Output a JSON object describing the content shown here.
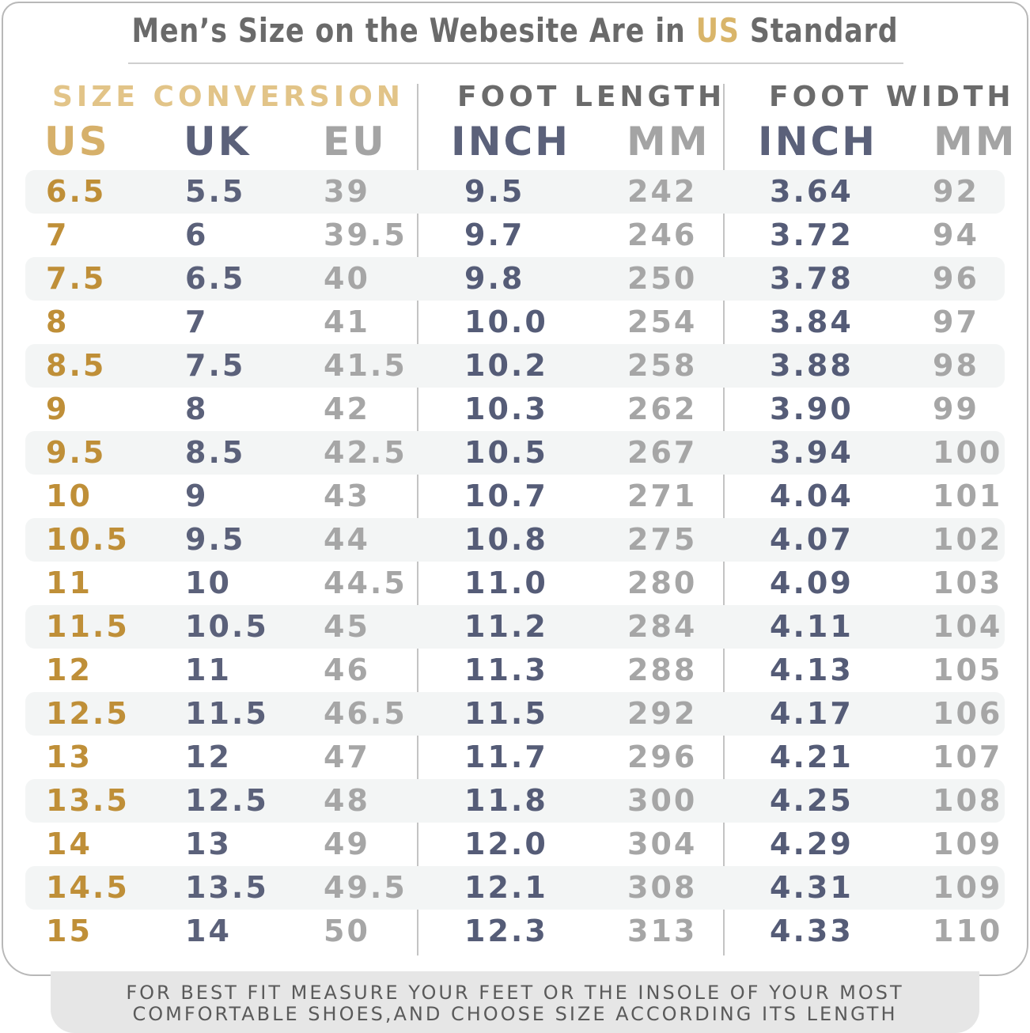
{
  "title": {
    "prefix": "Men’s Size on the Webesite Are in",
    "accent": "US",
    "suffix": "Standard"
  },
  "groups": {
    "size_conversion": "SIZE CONVERSION",
    "foot_length": "FOOT LENGTH",
    "foot_width": "FOOT WIDTH"
  },
  "columns": {
    "us": "US",
    "uk": "UK",
    "eu": "EU",
    "length_inch": "INCH",
    "length_mm": "MM",
    "width_inch": "INCH",
    "width_mm": "MM"
  },
  "rows": [
    {
      "us": "6.5",
      "uk": "5.5",
      "eu": "39",
      "length_inch": "9.5",
      "length_mm": "242",
      "width_inch": "3.64",
      "width_mm": "92"
    },
    {
      "us": "7",
      "uk": "6",
      "eu": "39.5",
      "length_inch": "9.7",
      "length_mm": "246",
      "width_inch": "3.72",
      "width_mm": "94"
    },
    {
      "us": "7.5",
      "uk": "6.5",
      "eu": "40",
      "length_inch": "9.8",
      "length_mm": "250",
      "width_inch": "3.78",
      "width_mm": "96"
    },
    {
      "us": "8",
      "uk": "7",
      "eu": "41",
      "length_inch": "10.0",
      "length_mm": "254",
      "width_inch": "3.84",
      "width_mm": "97"
    },
    {
      "us": "8.5",
      "uk": "7.5",
      "eu": "41.5",
      "length_inch": "10.2",
      "length_mm": "258",
      "width_inch": "3.88",
      "width_mm": "98"
    },
    {
      "us": "9",
      "uk": "8",
      "eu": "42",
      "length_inch": "10.3",
      "length_mm": "262",
      "width_inch": "3.90",
      "width_mm": "99"
    },
    {
      "us": "9.5",
      "uk": "8.5",
      "eu": "42.5",
      "length_inch": "10.5",
      "length_mm": "267",
      "width_inch": "3.94",
      "width_mm": "100"
    },
    {
      "us": "10",
      "uk": "9",
      "eu": "43",
      "length_inch": "10.7",
      "length_mm": "271",
      "width_inch": "4.04",
      "width_mm": "101"
    },
    {
      "us": "10.5",
      "uk": "9.5",
      "eu": "44",
      "length_inch": "10.8",
      "length_mm": "275",
      "width_inch": "4.07",
      "width_mm": "102"
    },
    {
      "us": "11",
      "uk": "10",
      "eu": "44.5",
      "length_inch": "11.0",
      "length_mm": "280",
      "width_inch": "4.09",
      "width_mm": "103"
    },
    {
      "us": "11.5",
      "uk": "10.5",
      "eu": "45",
      "length_inch": "11.2",
      "length_mm": "284",
      "width_inch": "4.11",
      "width_mm": "104"
    },
    {
      "us": "12",
      "uk": "11",
      "eu": "46",
      "length_inch": "11.3",
      "length_mm": "288",
      "width_inch": "4.13",
      "width_mm": "105"
    },
    {
      "us": "12.5",
      "uk": "11.5",
      "eu": "46.5",
      "length_inch": "11.5",
      "length_mm": "292",
      "width_inch": "4.17",
      "width_mm": "106"
    },
    {
      "us": "13",
      "uk": "12",
      "eu": "47",
      "length_inch": "11.7",
      "length_mm": "296",
      "width_inch": "4.21",
      "width_mm": "107"
    },
    {
      "us": "13.5",
      "uk": "12.5",
      "eu": "48",
      "length_inch": "11.8",
      "length_mm": "300",
      "width_inch": "4.25",
      "width_mm": "108"
    },
    {
      "us": "14",
      "uk": "13",
      "eu": "49",
      "length_inch": "12.0",
      "length_mm": "304",
      "width_inch": "4.29",
      "width_mm": "109"
    },
    {
      "us": "14.5",
      "uk": "13.5",
      "eu": "49.5",
      "length_inch": "12.1",
      "length_mm": "308",
      "width_inch": "4.31",
      "width_mm": "109"
    },
    {
      "us": "15",
      "uk": "14",
      "eu": "50",
      "length_inch": "12.3",
      "length_mm": "313",
      "width_inch": "4.33",
      "width_mm": "110"
    }
  ],
  "footer": {
    "line1": "FOR BEST FIT MEASURE YOUR FEET OR THE INSOLE OF YOUR MOST",
    "line2": "COMFORTABLE SHOES,AND CHOOSE SIZE ACCORDING ITS LENGTH"
  },
  "colors": {
    "accent_gold": "#d9b56a",
    "us_values": "#bf8f38",
    "navy_values": "#555c77",
    "gray_values": "#a6a6a6"
  }
}
